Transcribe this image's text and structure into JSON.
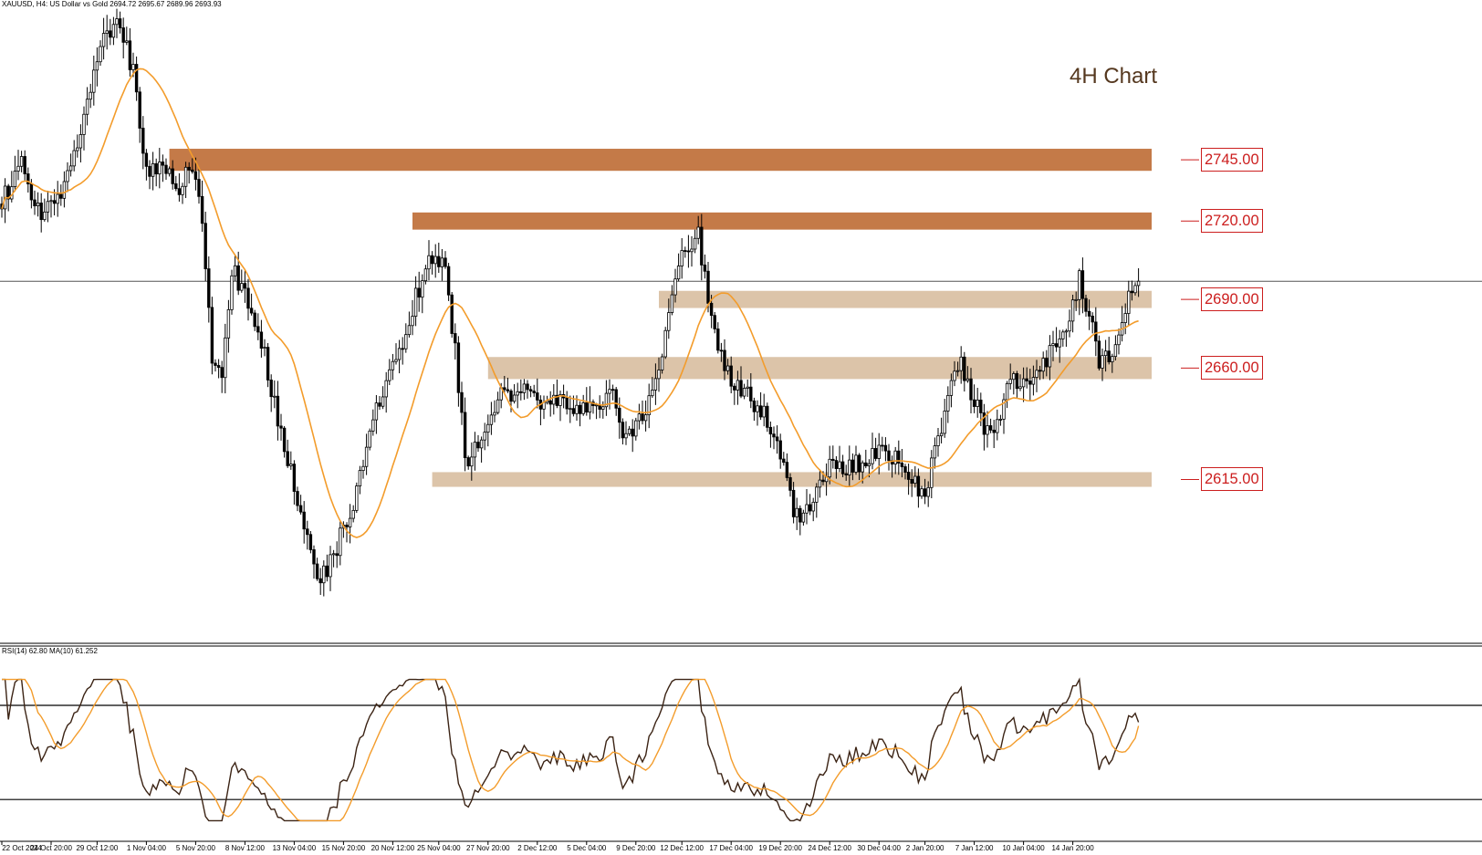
{
  "header": {
    "symbol_line": "XAUUSD, H4:  US Dollar vs Gold  2694.72 2695.67 2689.96 2693.93",
    "rsi_line": "RSI(14) 62.80 MA(10) 61.252"
  },
  "colors": {
    "candle": "#000000",
    "ma": "#f39c2b",
    "strong_zone": "#c47a48",
    "light_zone": "#dcc4a9",
    "level_label": "#cc1e1e",
    "rsi_line": "#3b2314",
    "rsi_ma": "#f39c2b"
  },
  "chart_data": {
    "type": "candlestick",
    "title": "4H Chart",
    "symbol": "XAUUSD",
    "timeframe": "H4",
    "ohlc_last": {
      "open": 2694.72,
      "high": 2695.67,
      "low": 2689.96,
      "close": 2693.93
    },
    "ylim": [
      2548,
      2805
    ],
    "current_price": 2693.93,
    "price_anchors": [
      {
        "i": 0,
        "p": 2726
      },
      {
        "i": 6,
        "p": 2742
      },
      {
        "i": 11,
        "p": 2722
      },
      {
        "i": 18,
        "p": 2732
      },
      {
        "i": 24,
        "p": 2755
      },
      {
        "i": 30,
        "p": 2793
      },
      {
        "i": 36,
        "p": 2798
      },
      {
        "i": 40,
        "p": 2780
      },
      {
        "i": 44,
        "p": 2740
      },
      {
        "i": 49,
        "p": 2742
      },
      {
        "i": 54,
        "p": 2732
      },
      {
        "i": 58,
        "p": 2742
      },
      {
        "i": 61,
        "p": 2722
      },
      {
        "i": 64,
        "p": 2660
      },
      {
        "i": 67,
        "p": 2652
      },
      {
        "i": 70,
        "p": 2700
      },
      {
        "i": 75,
        "p": 2684
      },
      {
        "i": 80,
        "p": 2665
      },
      {
        "i": 85,
        "p": 2630
      },
      {
        "i": 90,
        "p": 2605
      },
      {
        "i": 96,
        "p": 2570
      },
      {
        "i": 100,
        "p": 2580
      },
      {
        "i": 106,
        "p": 2598
      },
      {
        "i": 110,
        "p": 2622
      },
      {
        "i": 115,
        "p": 2645
      },
      {
        "i": 120,
        "p": 2662
      },
      {
        "i": 126,
        "p": 2688
      },
      {
        "i": 131,
        "p": 2705
      },
      {
        "i": 135,
        "p": 2698
      },
      {
        "i": 138,
        "p": 2665
      },
      {
        "i": 141,
        "p": 2622
      },
      {
        "i": 146,
        "p": 2626
      },
      {
        "i": 151,
        "p": 2645
      },
      {
        "i": 156,
        "p": 2650
      },
      {
        "i": 163,
        "p": 2645
      },
      {
        "i": 168,
        "p": 2648
      },
      {
        "i": 174,
        "p": 2642
      },
      {
        "i": 180,
        "p": 2646
      },
      {
        "i": 186,
        "p": 2646
      },
      {
        "i": 190,
        "p": 2628
      },
      {
        "i": 196,
        "p": 2640
      },
      {
        "i": 200,
        "p": 2658
      },
      {
        "i": 204,
        "p": 2685
      },
      {
        "i": 208,
        "p": 2710
      },
      {
        "i": 212,
        "p": 2712
      },
      {
        "i": 215,
        "p": 2685
      },
      {
        "i": 218,
        "p": 2665
      },
      {
        "i": 222,
        "p": 2652
      },
      {
        "i": 227,
        "p": 2648
      },
      {
        "i": 232,
        "p": 2640
      },
      {
        "i": 236,
        "p": 2632
      },
      {
        "i": 240,
        "p": 2605
      },
      {
        "i": 243,
        "p": 2595
      },
      {
        "i": 248,
        "p": 2610
      },
      {
        "i": 252,
        "p": 2620
      },
      {
        "i": 258,
        "p": 2618
      },
      {
        "i": 263,
        "p": 2620
      },
      {
        "i": 268,
        "p": 2628
      },
      {
        "i": 272,
        "p": 2622
      },
      {
        "i": 277,
        "p": 2612
      },
      {
        "i": 281,
        "p": 2608
      },
      {
        "i": 285,
        "p": 2630
      },
      {
        "i": 289,
        "p": 2655
      },
      {
        "i": 292,
        "p": 2660
      },
      {
        "i": 296,
        "p": 2645
      },
      {
        "i": 300,
        "p": 2632
      },
      {
        "i": 304,
        "p": 2640
      },
      {
        "i": 307,
        "p": 2655
      },
      {
        "i": 312,
        "p": 2650
      },
      {
        "i": 316,
        "p": 2660
      },
      {
        "i": 320,
        "p": 2666
      },
      {
        "i": 324,
        "p": 2678
      },
      {
        "i": 328,
        "p": 2694
      },
      {
        "i": 331,
        "p": 2682
      },
      {
        "i": 334,
        "p": 2662
      },
      {
        "i": 337,
        "p": 2662
      },
      {
        "i": 340,
        "p": 2670
      },
      {
        "i": 343,
        "p": 2690
      },
      {
        "i": 346,
        "p": 2694
      }
    ],
    "ma_period": 20,
    "zones": [
      {
        "low": 2739,
        "high": 2748,
        "start": 51,
        "end": 350,
        "style": "strong",
        "label": "2745.00"
      },
      {
        "low": 2715,
        "high": 2722,
        "start": 125,
        "end": 350,
        "style": "strong",
        "label": "2720.00"
      },
      {
        "low": 2683,
        "high": 2690,
        "start": 200,
        "end": 350,
        "style": "light",
        "label": "2690.00"
      },
      {
        "low": 2654,
        "high": 2663,
        "start": 148,
        "end": 350,
        "style": "light",
        "label": "2660.00"
      },
      {
        "low": 2610,
        "high": 2616,
        "start": 131,
        "end": 350,
        "style": "light",
        "label": "2615.00"
      }
    ],
    "x_ticks": [
      {
        "i": 0,
        "label": "22 Oct 2024"
      },
      {
        "i": 15,
        "label": "24 Oct 20:00"
      },
      {
        "i": 29,
        "label": "29 Oct 12:00"
      },
      {
        "i": 44,
        "label": "1 Nov 04:00"
      },
      {
        "i": 59,
        "label": "5 Nov 20:00"
      },
      {
        "i": 74,
        "label": "8 Nov 12:00"
      },
      {
        "i": 89,
        "label": "13 Nov 04:00"
      },
      {
        "i": 104,
        "label": "15 Nov 20:00"
      },
      {
        "i": 119,
        "label": "20 Nov 12:00"
      },
      {
        "i": 133,
        "label": "25 Nov 04:00"
      },
      {
        "i": 148,
        "label": "27 Nov 20:00"
      },
      {
        "i": 163,
        "label": "2 Dec 12:00"
      },
      {
        "i": 178,
        "label": "5 Dec 04:00"
      },
      {
        "i": 193,
        "label": "9 Dec 20:00"
      },
      {
        "i": 207,
        "label": "12 Dec 12:00"
      },
      {
        "i": 222,
        "label": "17 Dec 04:00"
      },
      {
        "i": 237,
        "label": "19 Dec 20:00"
      },
      {
        "i": 252,
        "label": "24 Dec 12:00"
      },
      {
        "i": 267,
        "label": "30 Dec 04:00"
      },
      {
        "i": 281,
        "label": "2 Jan 20:00"
      },
      {
        "i": 296,
        "label": "7 Jan 12:00"
      },
      {
        "i": 311,
        "label": "10 Jan 04:00"
      },
      {
        "i": 326,
        "label": "14 Jan 20:00"
      }
    ],
    "rsi": {
      "period": 14,
      "value": 62.8,
      "ma_period": 10,
      "ma_value": 61.252,
      "levels": [
        70,
        30
      ],
      "ylim": [
        20,
        82
      ]
    }
  }
}
